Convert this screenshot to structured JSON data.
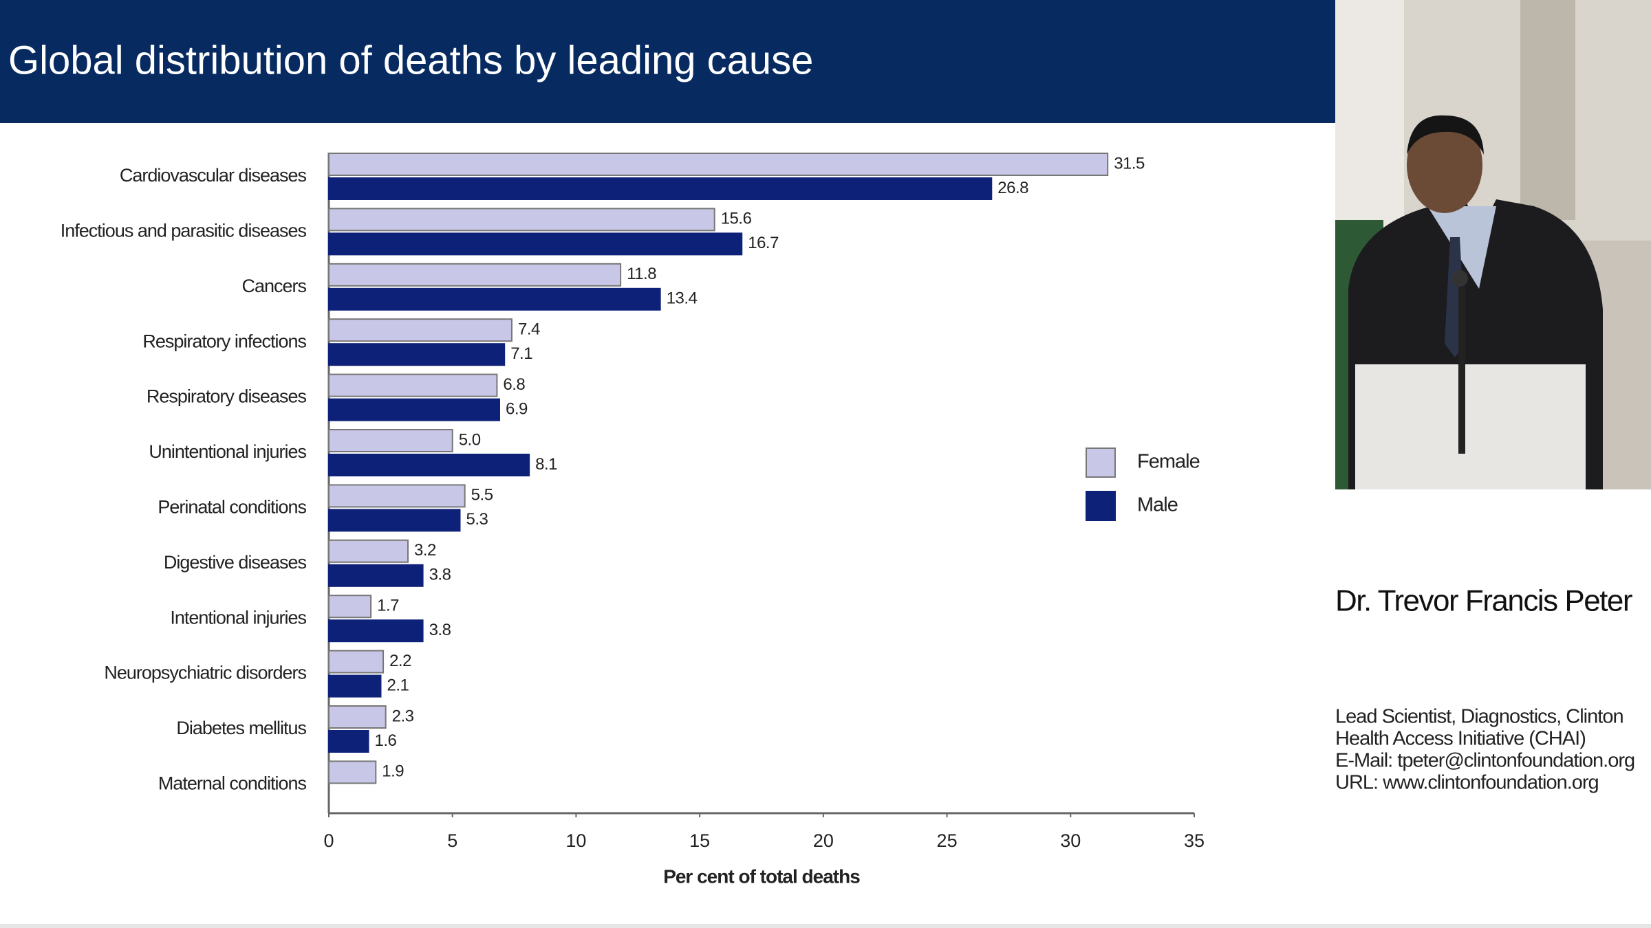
{
  "chart_data": {
    "type": "bar",
    "orientation": "horizontal",
    "title": "Global distribution of deaths by leading cause",
    "xlabel": "Per cent of total deaths",
    "categories": [
      "Cardiovascular diseases",
      "Infectious and parasitic diseases",
      "Cancers",
      "Respiratory infections",
      "Respiratory diseases",
      "Unintentional injuries",
      "Perinatal conditions",
      "Digestive diseases",
      "Intentional injuries",
      "Neuropsychiatric disorders",
      "Diabetes mellitus",
      "Maternal conditions"
    ],
    "series": [
      {
        "name": "Female",
        "color": "#c9c7e7",
        "values": [
          31.5,
          15.6,
          11.8,
          7.4,
          6.8,
          5.0,
          5.5,
          3.2,
          1.7,
          2.2,
          2.3,
          1.9
        ],
        "value_labels": [
          "31.5",
          "15.6",
          "11.8",
          "7.4",
          "6.8",
          "5.0",
          "5.5",
          "3.2",
          "1.7",
          "2.2",
          "2.3",
          "1.9"
        ]
      },
      {
        "name": "Male",
        "color": "#0e2178",
        "values": [
          26.8,
          16.7,
          13.4,
          7.1,
          6.9,
          8.1,
          5.3,
          3.8,
          3.8,
          2.1,
          1.6,
          null
        ],
        "value_labels": [
          "26.8",
          "16.7",
          "13.4",
          "7.1",
          "6.9",
          "8.1",
          "5.3",
          "3.8",
          "3.8",
          "2.1",
          "1.6",
          null
        ]
      }
    ],
    "xlim": [
      0,
      35
    ],
    "xticks": [
      0,
      5,
      10,
      15,
      20,
      25,
      30,
      35
    ],
    "grid": false,
    "legend": "right"
  },
  "speaker": {
    "name": "Dr. Trevor Francis Peter",
    "details": [
      "Lead Scientist, Diagnostics, Clinton",
      "Health Access Initiative (CHAI)",
      "E-Mail: tpeter@clintonfoundation.org",
      "URL: www.clintonfoundation.org"
    ]
  }
}
